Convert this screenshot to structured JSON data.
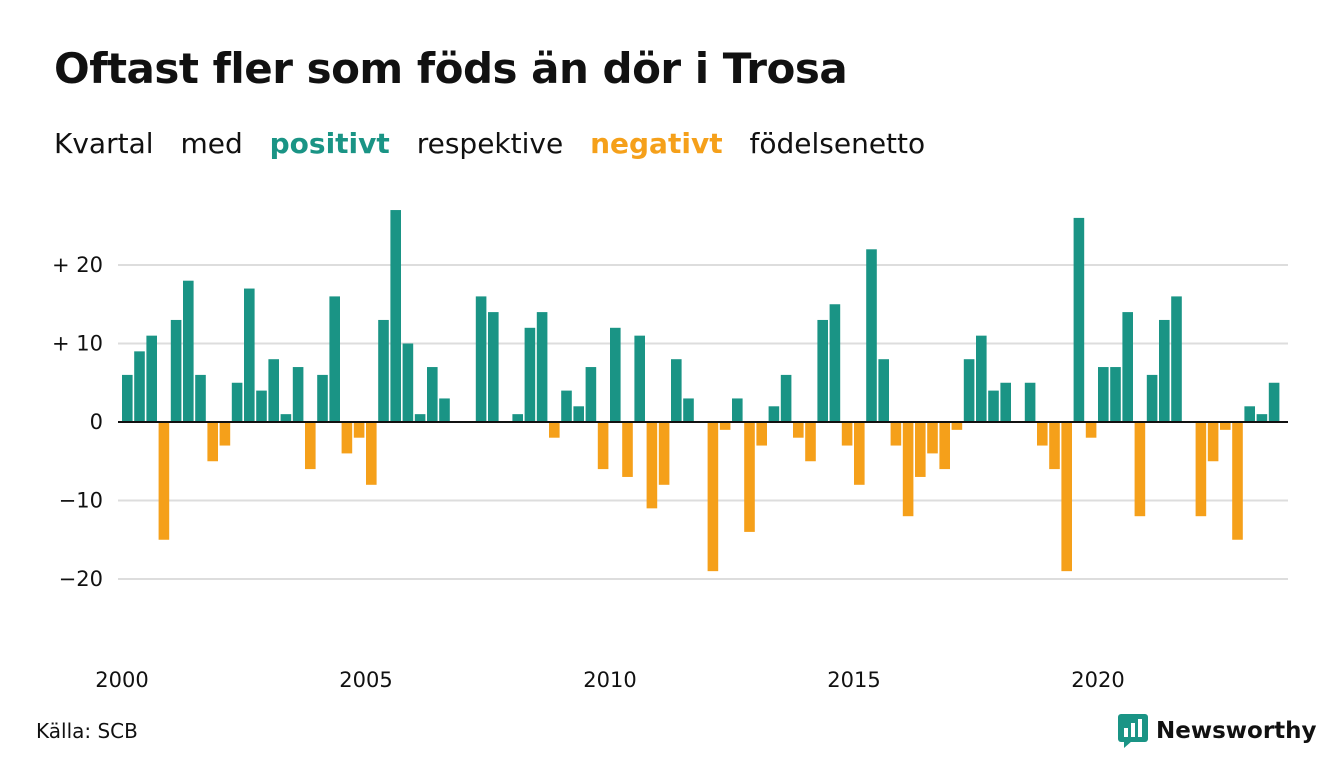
{
  "header": {
    "title": "Oftast fler som föds än dör i Trosa",
    "subtitle": {
      "part1": "Kvartal",
      "part2": "med",
      "positive": "positivt",
      "part3": "respektive",
      "negative": "negativt",
      "part4": "födelsenetto"
    }
  },
  "colors": {
    "positive": "#1a9485",
    "negative": "#f5a01a",
    "grid": "#dddddd",
    "zero": "#111111"
  },
  "footer": {
    "source": "Källa: SCB",
    "brand": "Newsworthy"
  },
  "chart_data": {
    "type": "bar",
    "title": "Oftast fler som föds än dör i Trosa",
    "subtitle": "Kvartal med positivt respektive negativt födelsenetto",
    "xlabel": "",
    "ylabel": "",
    "ylim": [
      -25,
      27
    ],
    "y_ticks": [
      {
        "value": 20,
        "label": "+ 20"
      },
      {
        "value": 10,
        "label": "+ 10"
      },
      {
        "value": 0,
        "label": "0"
      },
      {
        "value": -10,
        "label": "−10"
      },
      {
        "value": -20,
        "label": "−20"
      }
    ],
    "x_ticks": [
      {
        "year": 2000,
        "label": "2000"
      },
      {
        "year": 2005,
        "label": "2005"
      },
      {
        "year": 2010,
        "label": "2010"
      },
      {
        "year": 2015,
        "label": "2015"
      },
      {
        "year": 2020,
        "label": "2020"
      }
    ],
    "start_quarter": "2000 Q1",
    "grid": true,
    "legend": "subtitle",
    "values": [
      6,
      9,
      11,
      -15,
      13,
      18,
      6,
      -5,
      -3,
      5,
      17,
      4,
      8,
      1,
      7,
      -6,
      6,
      16,
      -4,
      -2,
      -8,
      13,
      27,
      10,
      1,
      7,
      3,
      0,
      0,
      16,
      14,
      0,
      1,
      12,
      14,
      -2,
      4,
      2,
      7,
      -6,
      12,
      -7,
      11,
      -11,
      -8,
      8,
      3,
      0,
      -19,
      -1,
      3,
      -14,
      -3,
      2,
      6,
      -2,
      -5,
      13,
      15,
      -3,
      -8,
      22,
      8,
      -3,
      -12,
      -7,
      -4,
      -6,
      -1,
      8,
      11,
      4,
      5,
      0,
      5,
      -3,
      -6,
      -19,
      26,
      -2,
      7,
      7,
      14,
      -12,
      6,
      13,
      16,
      0,
      -12,
      -5,
      -1,
      -15,
      2,
      1,
      5
    ]
  }
}
